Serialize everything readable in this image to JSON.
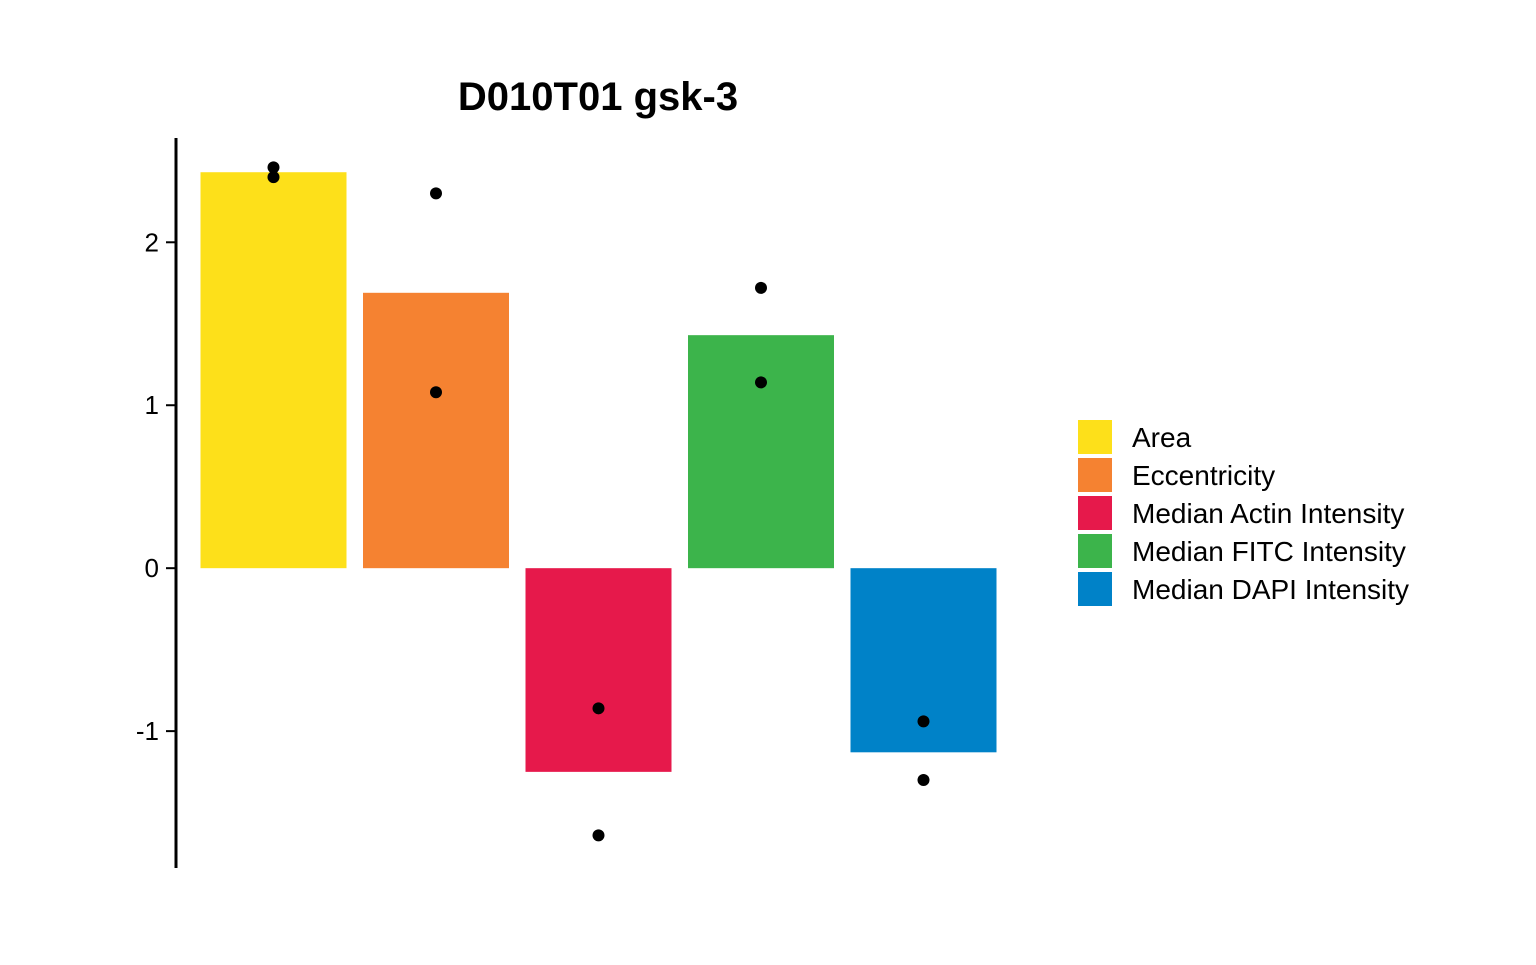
{
  "chart_data": {
    "type": "bar",
    "title": "D010T01 gsk-3",
    "xlabel": "",
    "ylabel": "",
    "ylim": [
      -1.84,
      2.64
    ],
    "yticks": [
      2,
      1,
      0,
      -1
    ],
    "ytick_labels": [
      "2",
      "1",
      "0",
      "-1"
    ],
    "grid": false,
    "legend_position": "right",
    "categories": [
      "Area",
      "Eccentricity",
      "Median Actin Intensity",
      "Median FITC Intensity",
      "Median DAPI Intensity"
    ],
    "values": [
      2.43,
      1.69,
      -1.25,
      1.43,
      -1.13
    ],
    "colors": [
      "#FDE01A",
      "#F58231",
      "#E6194B",
      "#3CB44B",
      "#0082C8"
    ],
    "points": [
      [
        2.46,
        2.4
      ],
      [
        2.3,
        1.08
      ],
      [
        -0.86,
        -1.64
      ],
      [
        1.72,
        1.14
      ],
      [
        -0.94,
        -1.3
      ]
    ],
    "legend": [
      {
        "label": "Area",
        "color": "#FDE01A"
      },
      {
        "label": "Eccentricity",
        "color": "#F58231"
      },
      {
        "label": "Median Actin Intensity",
        "color": "#E6194B"
      },
      {
        "label": "Median FITC Intensity",
        "color": "#3CB44B"
      },
      {
        "label": "Median DAPI Intensity",
        "color": "#0082C8"
      }
    ]
  }
}
